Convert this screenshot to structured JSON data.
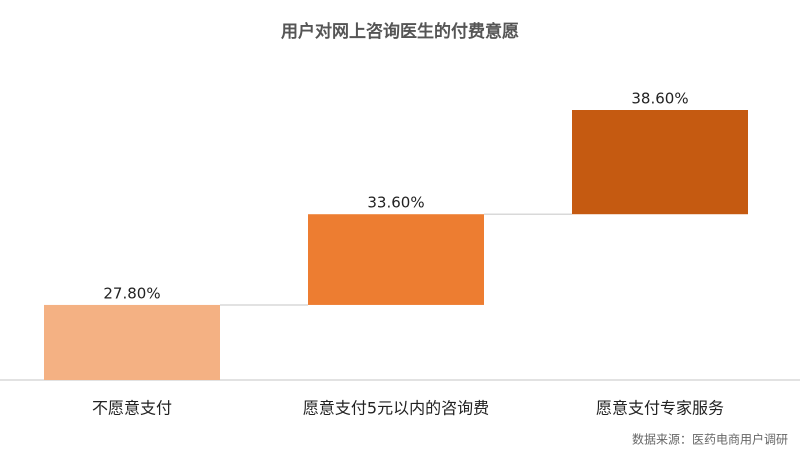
{
  "chart_data": {
    "type": "waterfall",
    "title": "用户对网上咨询医生的付费意愿",
    "categories": [
      "不愿意支付",
      "愿意支付5元以内的咨询费",
      "愿意支付专家服务"
    ],
    "values": [
      27.8,
      33.6,
      38.6
    ],
    "value_labels": [
      "27.80%",
      "33.60%",
      "38.60%"
    ],
    "colors": [
      "#f4b183",
      "#ed7d31",
      "#c55a11"
    ],
    "ylim": [
      0,
      100
    ],
    "note": "数据来源：医药电商用户调研"
  }
}
